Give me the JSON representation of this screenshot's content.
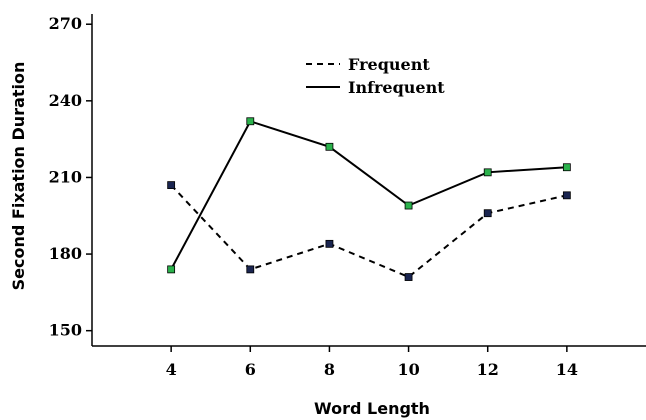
{
  "chart_data": {
    "type": "line",
    "x": [
      4,
      6,
      8,
      10,
      12,
      14
    ],
    "xticks": [
      "4",
      "6",
      "8",
      "10",
      "12",
      "14"
    ],
    "yticks": [
      "150",
      "180",
      "210",
      "240",
      "270"
    ],
    "xlabel": "Word Length",
    "ylabel": "Second Fixation Duration",
    "xlim": [
      2,
      16
    ],
    "ylim": [
      144,
      274
    ],
    "legend_position": "top-center",
    "grid": false,
    "series": [
      {
        "name": "Frequent",
        "style": "dashed",
        "marker_color": "#1a2550",
        "values": [
          207,
          174,
          184,
          171,
          196,
          203
        ]
      },
      {
        "name": "Infrequent",
        "style": "solid",
        "marker_color": "#2bb24c",
        "values": [
          174,
          232,
          222,
          199,
          212,
          214
        ]
      }
    ]
  }
}
